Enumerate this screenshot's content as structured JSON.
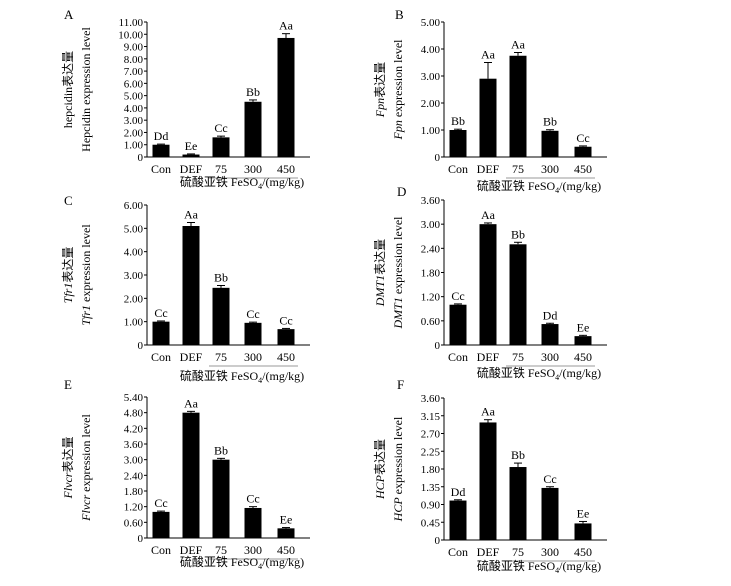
{
  "chart_data": [
    {
      "panel": "A",
      "type": "bar",
      "categories": [
        "Con",
        "DEF",
        "75",
        "300",
        "450"
      ],
      "values": [
        1.0,
        0.2,
        1.6,
        4.5,
        9.7
      ],
      "errors": [
        0.05,
        0.05,
        0.1,
        0.15,
        0.35
      ],
      "labels": [
        "Dd",
        "Ee",
        "Cc",
        "Bb",
        "Aa"
      ],
      "ylim": [
        0,
        11
      ],
      "yticks": [
        "0",
        "1.00",
        "2.00",
        "3.00",
        "4.00",
        "5.00",
        "6.00",
        "7.00",
        "8.00",
        "9.00",
        "10.00",
        "11.00"
      ],
      "ylabel_cn": "hepcidin表达量",
      "ylabel_en": "Hepcidin expression level",
      "ylabel_gene": "",
      "ylabel_cn_suffix": "",
      "ylabel_en_suffix": "",
      "xlabel": "硫酸亚铁 FeSO",
      "xlabel_sub": "4",
      "xlabel_unit": "/(mg/kg)",
      "grid": false
    },
    {
      "panel": "B",
      "type": "bar",
      "categories": [
        "Con",
        "DEF",
        "75",
        "300",
        "450"
      ],
      "values": [
        1.0,
        2.9,
        3.75,
        0.97,
        0.38
      ],
      "errors": [
        0.03,
        0.6,
        0.12,
        0.04,
        0.03
      ],
      "labels": [
        "Bb",
        "Aa",
        "Aa",
        "Bb",
        "Cc"
      ],
      "ylim": [
        0,
        5
      ],
      "yticks": [
        "0",
        "1.00",
        "2.00",
        "3.00",
        "4.00",
        "5.00"
      ],
      "ylabel_cn": "",
      "ylabel_en": "",
      "ylabel_gene": "Fpn",
      "ylabel_cn_suffix": "表达量",
      "ylabel_en_suffix": " expression level",
      "xlabel": "硫酸亚铁 FeSO",
      "xlabel_sub": "4",
      "xlabel_unit": "/(mg/kg)",
      "grid": false
    },
    {
      "panel": "C",
      "type": "bar",
      "categories": [
        "Con",
        "DEF",
        "75",
        "300",
        "450"
      ],
      "values": [
        1.0,
        5.1,
        2.45,
        0.95,
        0.68
      ],
      "errors": [
        0.03,
        0.15,
        0.1,
        0.03,
        0.03
      ],
      "labels": [
        "Cc",
        "Aa",
        "Bb",
        "Cc",
        "Cc"
      ],
      "ylim": [
        0,
        6
      ],
      "yticks": [
        "0",
        "1.00",
        "2.00",
        "3.00",
        "4.00",
        "5.00",
        "6.00"
      ],
      "ylabel_cn": "",
      "ylabel_en": "",
      "ylabel_gene": "Tfr1",
      "ylabel_cn_suffix": "表达量",
      "ylabel_en_suffix": " expression level",
      "xlabel": "硫酸亚铁 FeSO",
      "xlabel_sub": "4",
      "xlabel_unit": "/(mg/kg)",
      "grid": false
    },
    {
      "panel": "D",
      "type": "bar",
      "categories": [
        "Con",
        "DEF",
        "75",
        "300",
        "450"
      ],
      "values": [
        1.0,
        3.0,
        2.5,
        0.52,
        0.22
      ],
      "errors": [
        0.02,
        0.03,
        0.05,
        0.02,
        0.02
      ],
      "labels": [
        "Cc",
        "Aa",
        "Bb",
        "Dd",
        "Ee"
      ],
      "ylim": [
        0,
        3.6
      ],
      "yticks": [
        "0",
        "0.60",
        "1.20",
        "1.80",
        "2.40",
        "3.00",
        "3.60"
      ],
      "ylabel_cn": "",
      "ylabel_en": "",
      "ylabel_gene": "DMT1",
      "ylabel_cn_suffix": "表达量",
      "ylabel_en_suffix": " expression level",
      "xlabel": "硫酸亚铁 FeSO",
      "xlabel_sub": "4",
      "xlabel_unit": "/(mg/kg)",
      "grid": false
    },
    {
      "panel": "E",
      "type": "bar",
      "categories": [
        "Con",
        "DEF",
        "75",
        "300",
        "450"
      ],
      "values": [
        1.0,
        4.8,
        3.0,
        1.15,
        0.37
      ],
      "errors": [
        0.03,
        0.05,
        0.05,
        0.05,
        0.03
      ],
      "labels": [
        "Cc",
        "Aa",
        "Bb",
        "Cc",
        "Ee"
      ],
      "ylim": [
        0,
        5.4
      ],
      "yticks": [
        "0",
        "0.60",
        "1.20",
        "1.80",
        "2.40",
        "3.00",
        "3.60",
        "4.20",
        "4.80",
        "5.40"
      ],
      "ylabel_cn": "",
      "ylabel_en": "",
      "ylabel_gene": "Flvcr",
      "ylabel_cn_suffix": "表达量",
      "ylabel_en_suffix": " expression level",
      "xlabel": "硫酸亚铁 FeSO",
      "xlabel_sub": "4",
      "xlabel_unit": "/(mg/kg)",
      "grid": false
    },
    {
      "panel": "F",
      "type": "bar",
      "categories": [
        "Con",
        "DEF",
        "75",
        "300",
        "450"
      ],
      "values": [
        1.0,
        2.98,
        1.85,
        1.32,
        0.42
      ],
      "errors": [
        0.02,
        0.07,
        0.1,
        0.03,
        0.05
      ],
      "labels": [
        "Dd",
        "Aa",
        "Bb",
        "Cc",
        "Ee"
      ],
      "ylim": [
        0,
        3.6
      ],
      "yticks": [
        "0",
        "0.45",
        "0.90",
        "1.35",
        "1.80",
        "2.25",
        "2.70",
        "3.15",
        "3.60"
      ],
      "ylabel_cn": "",
      "ylabel_en": "",
      "ylabel_gene": "HCP",
      "ylabel_cn_suffix": "表达量",
      "ylabel_en_suffix": " expression level",
      "xlabel": "硫酸亚铁 FeSO",
      "xlabel_sub": "4",
      "xlabel_unit": "/(mg/kg)",
      "grid": false
    }
  ]
}
